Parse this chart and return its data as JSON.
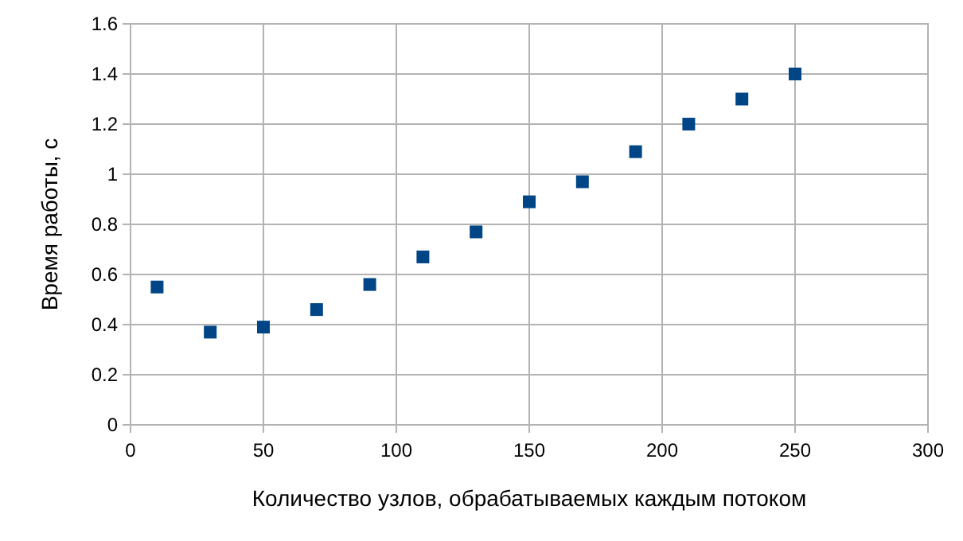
{
  "chart_data": {
    "type": "scatter",
    "xlabel": "Количество узлов, обрабатываемых каждым потоком",
    "ylabel": "Время работы, с",
    "x": [
      10,
      30,
      50,
      70,
      90,
      110,
      130,
      150,
      170,
      190,
      210,
      230,
      250
    ],
    "series": [
      {
        "color": "#004586",
        "values": [
          0.55,
          0.37,
          0.39,
          0.46,
          0.56,
          0.67,
          0.77,
          0.89,
          0.97,
          1.09,
          1.2,
          1.3,
          1.4
        ]
      }
    ],
    "xlim": [
      0,
      300
    ],
    "xticks": [
      0,
      50,
      100,
      150,
      200,
      250,
      300
    ],
    "ylim": [
      0,
      1.6
    ],
    "yticks": [
      0,
      0.2,
      0.4,
      0.6,
      0.8,
      1,
      1.2,
      1.4,
      1.6
    ],
    "grid": true,
    "marker": "square"
  }
}
